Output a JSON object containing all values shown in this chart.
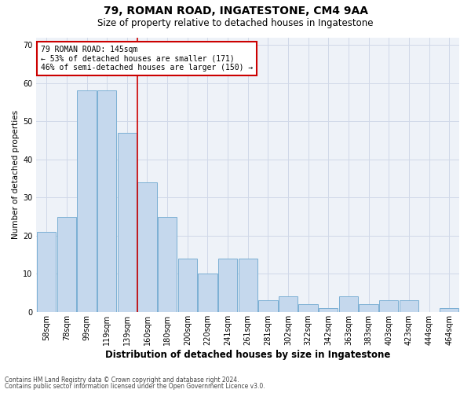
{
  "title1": "79, ROMAN ROAD, INGATESTONE, CM4 9AA",
  "title2": "Size of property relative to detached houses in Ingatestone",
  "xlabel": "Distribution of detached houses by size in Ingatestone",
  "ylabel": "Number of detached properties",
  "categories": [
    "58sqm",
    "78sqm",
    "99sqm",
    "119sqm",
    "139sqm",
    "160sqm",
    "180sqm",
    "200sqm",
    "220sqm",
    "241sqm",
    "261sqm",
    "281sqm",
    "302sqm",
    "322sqm",
    "342sqm",
    "363sqm",
    "383sqm",
    "403sqm",
    "423sqm",
    "444sqm",
    "464sqm"
  ],
  "values": [
    21,
    25,
    58,
    58,
    47,
    34,
    25,
    14,
    10,
    14,
    14,
    3,
    4,
    2,
    1,
    4,
    2,
    3,
    3,
    0,
    1
  ],
  "bar_color": "#c5d8ed",
  "bar_edge_color": "#7bafd4",
  "grid_color": "#d0d8e8",
  "bg_color": "#eef2f8",
  "vline_x": 4.5,
  "vline_color": "#cc0000",
  "annotation_text": "79 ROMAN ROAD: 145sqm\n← 53% of detached houses are smaller (171)\n46% of semi-detached houses are larger (150) →",
  "annotation_box_color": "white",
  "annotation_box_edge": "#cc0000",
  "footer1": "Contains HM Land Registry data © Crown copyright and database right 2024.",
  "footer2": "Contains public sector information licensed under the Open Government Licence v3.0.",
  "ylim": [
    0,
    72
  ],
  "yticks": [
    0,
    10,
    20,
    30,
    40,
    50,
    60,
    70
  ],
  "title1_fontsize": 10,
  "title2_fontsize": 8.5,
  "xlabel_fontsize": 8.5,
  "ylabel_fontsize": 7.5,
  "tick_fontsize": 7,
  "ann_fontsize": 7,
  "footer_fontsize": 5.5
}
